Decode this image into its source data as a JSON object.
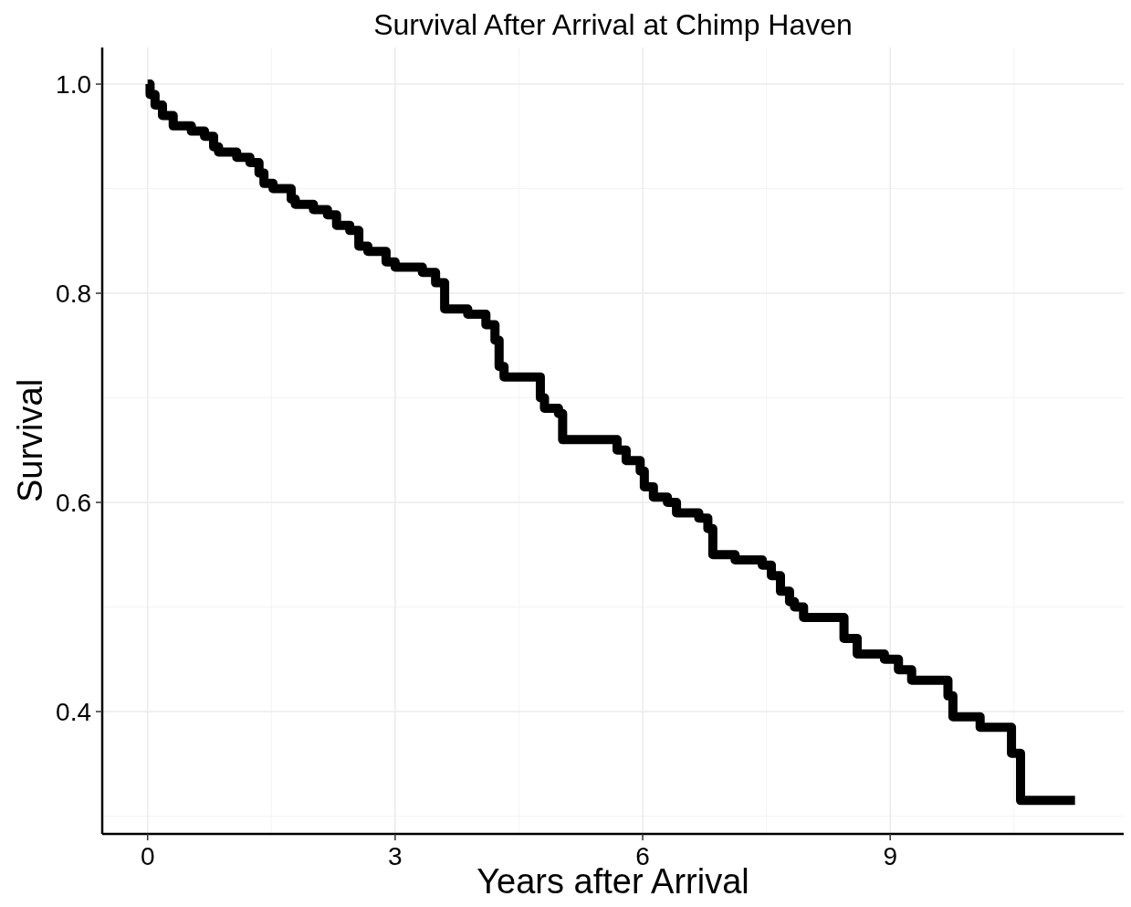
{
  "chart_data": {
    "type": "step",
    "title": "Survival After Arrival at Chimp Haven",
    "xlabel": "Years after Arrival",
    "ylabel": "Survival",
    "x": [
      0,
      0.03,
      0.09,
      0.18,
      0.31,
      0.47,
      0.53,
      0.69,
      0.8,
      0.86,
      1.08,
      1.24,
      1.35,
      1.41,
      1.52,
      1.74,
      1.79,
      2.01,
      2.18,
      2.29,
      2.45,
      2.56,
      2.67,
      2.89,
      3.0,
      3.33,
      3.49,
      3.6,
      3.88,
      4.1,
      4.21,
      4.26,
      4.32,
      4.7,
      4.76,
      4.81,
      4.98,
      5.03,
      5.58,
      5.69,
      5.8,
      5.97,
      6.02,
      6.13,
      6.3,
      6.41,
      6.68,
      6.79,
      6.85,
      7.12,
      7.45,
      7.56,
      7.67,
      7.78,
      7.84,
      7.95,
      8.38,
      8.44,
      8.6,
      8.93,
      9.1,
      9.26,
      9.7,
      9.76,
      10.09,
      10.47,
      10.58,
      11.24
    ],
    "series": [
      {
        "color": "#000000",
        "values": [
          1.0,
          0.99,
          0.98,
          0.97,
          0.96,
          0.96,
          0.955,
          0.95,
          0.94,
          0.935,
          0.93,
          0.925,
          0.915,
          0.905,
          0.9,
          0.89,
          0.885,
          0.88,
          0.875,
          0.865,
          0.86,
          0.845,
          0.84,
          0.83,
          0.825,
          0.82,
          0.81,
          0.785,
          0.78,
          0.77,
          0.755,
          0.73,
          0.72,
          0.72,
          0.7,
          0.69,
          0.685,
          0.66,
          0.66,
          0.65,
          0.64,
          0.63,
          0.615,
          0.605,
          0.6,
          0.59,
          0.585,
          0.575,
          0.55,
          0.545,
          0.54,
          0.53,
          0.515,
          0.505,
          0.5,
          0.49,
          0.49,
          0.47,
          0.455,
          0.45,
          0.44,
          0.43,
          0.415,
          0.395,
          0.385,
          0.36,
          0.315,
          0.315
        ]
      }
    ],
    "xlim": [
      -0.55,
      11.83
    ],
    "ylim": [
      0.283,
      1.035
    ],
    "xticks": [
      0,
      3,
      6,
      9
    ],
    "yticks": [
      {
        "value": 1.0,
        "label": "1.0"
      },
      0.4,
      0.6,
      0.8
    ],
    "grid": true,
    "line_style": "solid"
  }
}
